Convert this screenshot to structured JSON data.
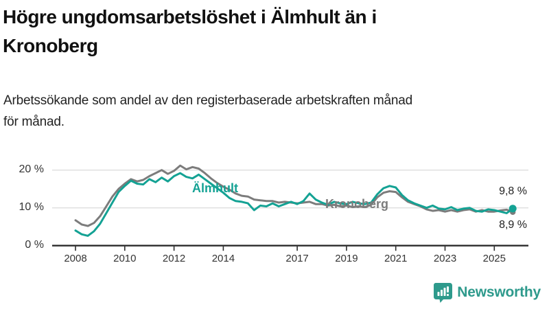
{
  "header": {
    "title_lines": [
      "Högre ungdomsarbetslöshet i Älmhult än i",
      "Kronoberg"
    ],
    "subtitle_lines": [
      "Arbetssökande som andel av den registerbaserade arbetskraften månad",
      "för månad."
    ]
  },
  "chart_data": {
    "type": "line",
    "title": "Högre ungdomsarbetslöshet i Älmhult än i Kronoberg",
    "subtitle": "Arbetssökande som andel av den registerbaserade arbetskraften månad för månad.",
    "x_unit": "year",
    "x_start": 2008.0,
    "x_step": 0.25,
    "x_range": [
      2008,
      2025.75
    ],
    "ylim": [
      0,
      22
    ],
    "grid": "horizontal",
    "legend_position": "inline-on-lines",
    "x_tick_years": [
      2008,
      2010,
      2012,
      2014,
      2017,
      2019,
      2021,
      2023,
      2025
    ],
    "x_tick_labels": [
      "2008",
      "2010",
      "2012",
      "2014",
      "2017",
      "2019",
      "2021",
      "2023",
      "2025"
    ],
    "y_ticks": [
      {
        "value": 0,
        "label": "0 %"
      },
      {
        "value": 10,
        "label": "10 %"
      },
      {
        "value": 20,
        "label": "20 %"
      }
    ],
    "series": [
      {
        "name": "Älmhult",
        "color": "#14a294",
        "end_dot": true,
        "values": [
          4.0,
          3.0,
          2.6,
          3.8,
          5.8,
          8.6,
          11.4,
          14.2,
          15.8,
          17.2,
          16.4,
          16.2,
          17.6,
          16.8,
          18.0,
          17.0,
          18.4,
          19.2,
          18.2,
          17.8,
          18.8,
          17.6,
          16.4,
          15.2,
          14.0,
          12.6,
          11.8,
          11.6,
          11.2,
          9.4,
          10.6,
          10.4,
          11.2,
          10.4,
          11.0,
          11.6,
          11.0,
          11.8,
          13.8,
          12.2,
          11.4,
          10.8,
          11.6,
          11.2,
          11.0,
          11.6,
          11.2,
          11.0,
          11.4,
          13.6,
          15.2,
          15.8,
          15.4,
          13.4,
          12.0,
          11.2,
          10.6,
          10.0,
          10.6,
          9.8,
          9.6,
          10.2,
          9.4,
          9.8,
          10.0,
          9.2,
          9.0,
          9.6,
          9.4,
          9.0,
          8.6,
          9.8
        ]
      },
      {
        "name": "Kronoberg",
        "color": "#7c7c7c",
        "end_dot": true,
        "values": [
          6.7,
          5.6,
          5.2,
          6.0,
          7.8,
          10.4,
          13.0,
          15.0,
          16.4,
          17.6,
          17.0,
          17.4,
          18.4,
          19.2,
          20.0,
          19.0,
          19.8,
          21.2,
          20.2,
          20.8,
          20.4,
          19.2,
          17.8,
          16.6,
          15.6,
          14.8,
          13.8,
          13.2,
          13.0,
          12.2,
          12.0,
          11.8,
          11.8,
          11.4,
          11.6,
          11.4,
          11.2,
          11.4,
          11.6,
          11.0,
          11.0,
          10.6,
          10.8,
          10.4,
          10.6,
          10.2,
          10.4,
          10.2,
          10.8,
          12.8,
          14.0,
          14.4,
          14.2,
          12.8,
          11.6,
          11.0,
          10.4,
          9.6,
          9.2,
          9.4,
          9.0,
          9.4,
          9.0,
          9.4,
          9.6,
          9.0,
          9.4,
          9.0,
          9.0,
          9.3,
          9.5,
          8.9
        ]
      }
    ],
    "end_labels": [
      {
        "series": "Älmhult",
        "label": "9,8 %",
        "value": 9.8
      },
      {
        "series": "Kronoberg",
        "label": "8,9 %",
        "value": 8.9
      }
    ]
  },
  "footer": {
    "brand": "Newsworthy"
  },
  "colors": {
    "almhult_line": "#14a294",
    "kronoberg_line": "#7c7c7c",
    "gridline": "#dedede",
    "axis": "#2b2b2b",
    "logo_teal": "#2e9a8c"
  }
}
